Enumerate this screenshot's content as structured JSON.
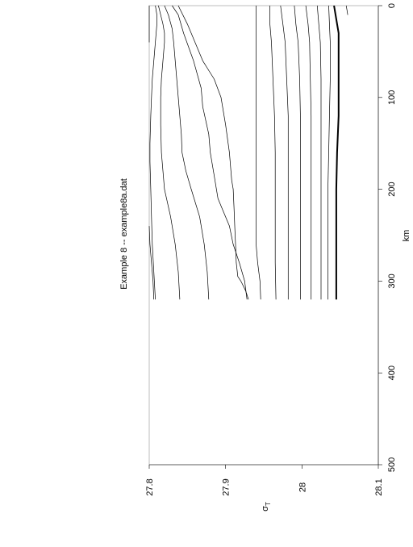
{
  "chart_data": {
    "type": "line",
    "subtype": "contour",
    "orientation": "rotated-90-ccw",
    "title": "Example 8 -- example8a.dat",
    "xlabel": "σ",
    "xlabel_subscript": "T",
    "ylabel": "km",
    "xlim": [
      27.8,
      28.1
    ],
    "ylim": [
      0,
      500
    ],
    "x_ticks": [
      "27.8",
      "27.9",
      "28",
      "28.1"
    ],
    "y_ticks": [
      "0",
      "100",
      "200",
      "300",
      "400",
      "500"
    ],
    "grid": false,
    "line_color": "#000000",
    "series": [
      {
        "y": [
          0,
          10,
          20,
          30,
          40
        ],
        "x": [
          27.8,
          27.8,
          27.8,
          27.8,
          27.8
        ]
      },
      {
        "y": [
          240,
          260,
          280,
          300,
          320
        ],
        "x": [
          27.8,
          27.801,
          27.803,
          27.805,
          27.806
        ]
      },
      {
        "y": [
          0,
          10,
          20,
          40,
          60,
          80,
          100,
          120,
          150,
          170,
          200,
          230,
          260,
          290,
          320
        ],
        "x": [
          27.808,
          27.81,
          27.81,
          27.808,
          27.806,
          27.804,
          27.803,
          27.802,
          27.801,
          27.801,
          27.802,
          27.803,
          27.804,
          27.806,
          27.808
        ]
      },
      {
        "y": [
          0,
          10,
          20,
          30,
          40,
          60,
          80,
          100,
          130,
          160,
          200,
          230,
          260,
          290,
          320
        ],
        "x": [
          27.812,
          27.815,
          27.818,
          27.82,
          27.82,
          27.818,
          27.816,
          27.815,
          27.815,
          27.816,
          27.82,
          27.828,
          27.834,
          27.838,
          27.84
        ]
      },
      {
        "y": [
          0,
          10,
          25,
          40,
          60,
          80,
          100,
          120,
          140,
          160,
          180,
          200,
          230,
          260,
          290,
          320
        ],
        "x": [
          27.82,
          27.825,
          27.83,
          27.832,
          27.834,
          27.836,
          27.838,
          27.84,
          27.842,
          27.843,
          27.848,
          27.855,
          27.866,
          27.872,
          27.876,
          27.878
        ]
      },
      {
        "y": [
          0,
          10,
          30,
          60,
          90,
          110,
          140,
          160,
          185,
          200,
          210,
          220,
          240,
          260,
          280,
          300,
          320
        ],
        "x": [
          27.83,
          27.838,
          27.845,
          27.858,
          27.868,
          27.87,
          27.878,
          27.88,
          27.885,
          27.888,
          27.89,
          27.895,
          27.905,
          27.91,
          27.918,
          27.925,
          27.928
        ]
      },
      {
        "y": [
          0,
          20,
          40,
          60,
          80,
          100,
          130,
          160,
          190,
          200,
          220,
          240,
          260,
          280,
          295,
          300,
          310,
          320
        ],
        "x": [
          27.838,
          27.85,
          27.86,
          27.87,
          27.885,
          27.894,
          27.9,
          27.905,
          27.908,
          27.91,
          27.911,
          27.912,
          27.913,
          27.914,
          27.916,
          27.92,
          27.926,
          27.93
        ]
      },
      {
        "y": [
          0,
          20,
          40,
          60,
          80,
          100,
          120,
          140,
          160,
          180,
          200,
          220,
          240,
          260,
          280,
          300,
          320
        ],
        "x": [
          27.94,
          27.94,
          27.94,
          27.94,
          27.94,
          27.94,
          27.94,
          27.94,
          27.94,
          27.94,
          27.94,
          27.94,
          27.94,
          27.94,
          27.942,
          27.945,
          27.946
        ]
      },
      {
        "y": [
          0,
          20,
          40,
          80,
          120,
          160,
          200,
          240,
          280,
          320
        ],
        "x": [
          27.958,
          27.958,
          27.96,
          27.962,
          27.964,
          27.965,
          27.965,
          27.965,
          27.965,
          27.966
        ]
      },
      {
        "y": [
          0,
          20,
          40,
          80,
          120,
          160,
          200,
          240,
          280,
          320
        ],
        "x": [
          27.972,
          27.975,
          27.978,
          27.98,
          27.982,
          27.982,
          27.982,
          27.982,
          27.982,
          27.982
        ]
      },
      {
        "y": [
          0,
          20,
          40,
          80,
          120,
          160,
          200,
          240,
          280,
          320
        ],
        "x": [
          27.99,
          27.992,
          27.995,
          27.997,
          27.998,
          27.998,
          27.998,
          27.998,
          27.998,
          27.998
        ]
      },
      {
        "y": [
          0,
          20,
          40,
          80,
          120,
          160,
          200,
          240,
          280,
          320
        ],
        "x": [
          28.005,
          28.008,
          28.01,
          28.011,
          28.012,
          28.012,
          28.012,
          28.012,
          28.012,
          28.012
        ]
      },
      {
        "y": [
          0,
          20,
          40,
          80,
          120,
          160,
          200,
          240,
          280,
          320
        ],
        "x": [
          28.02,
          28.022,
          28.024,
          28.025,
          28.025,
          28.025,
          28.025,
          28.025,
          28.025,
          28.025
        ]
      },
      {
        "y": [
          0,
          20,
          40,
          80,
          120,
          160,
          200,
          240,
          280,
          320
        ],
        "x": [
          28.035,
          28.036,
          28.037,
          28.037,
          28.036,
          28.035,
          28.034,
          28.034,
          28.034,
          28.034
        ]
      },
      {
        "y": [
          0,
          10,
          20,
          30,
          40,
          80,
          120,
          160,
          200,
          240,
          280,
          320
        ],
        "x": [
          28.042,
          28.044,
          28.046,
          28.048,
          28.048,
          28.048,
          28.048,
          28.046,
          28.045,
          28.045,
          28.045,
          28.045
        ],
        "bold": true
      },
      {
        "y": [
          0,
          5,
          10
        ],
        "x": [
          28.058,
          28.059,
          28.06
        ]
      }
    ]
  }
}
